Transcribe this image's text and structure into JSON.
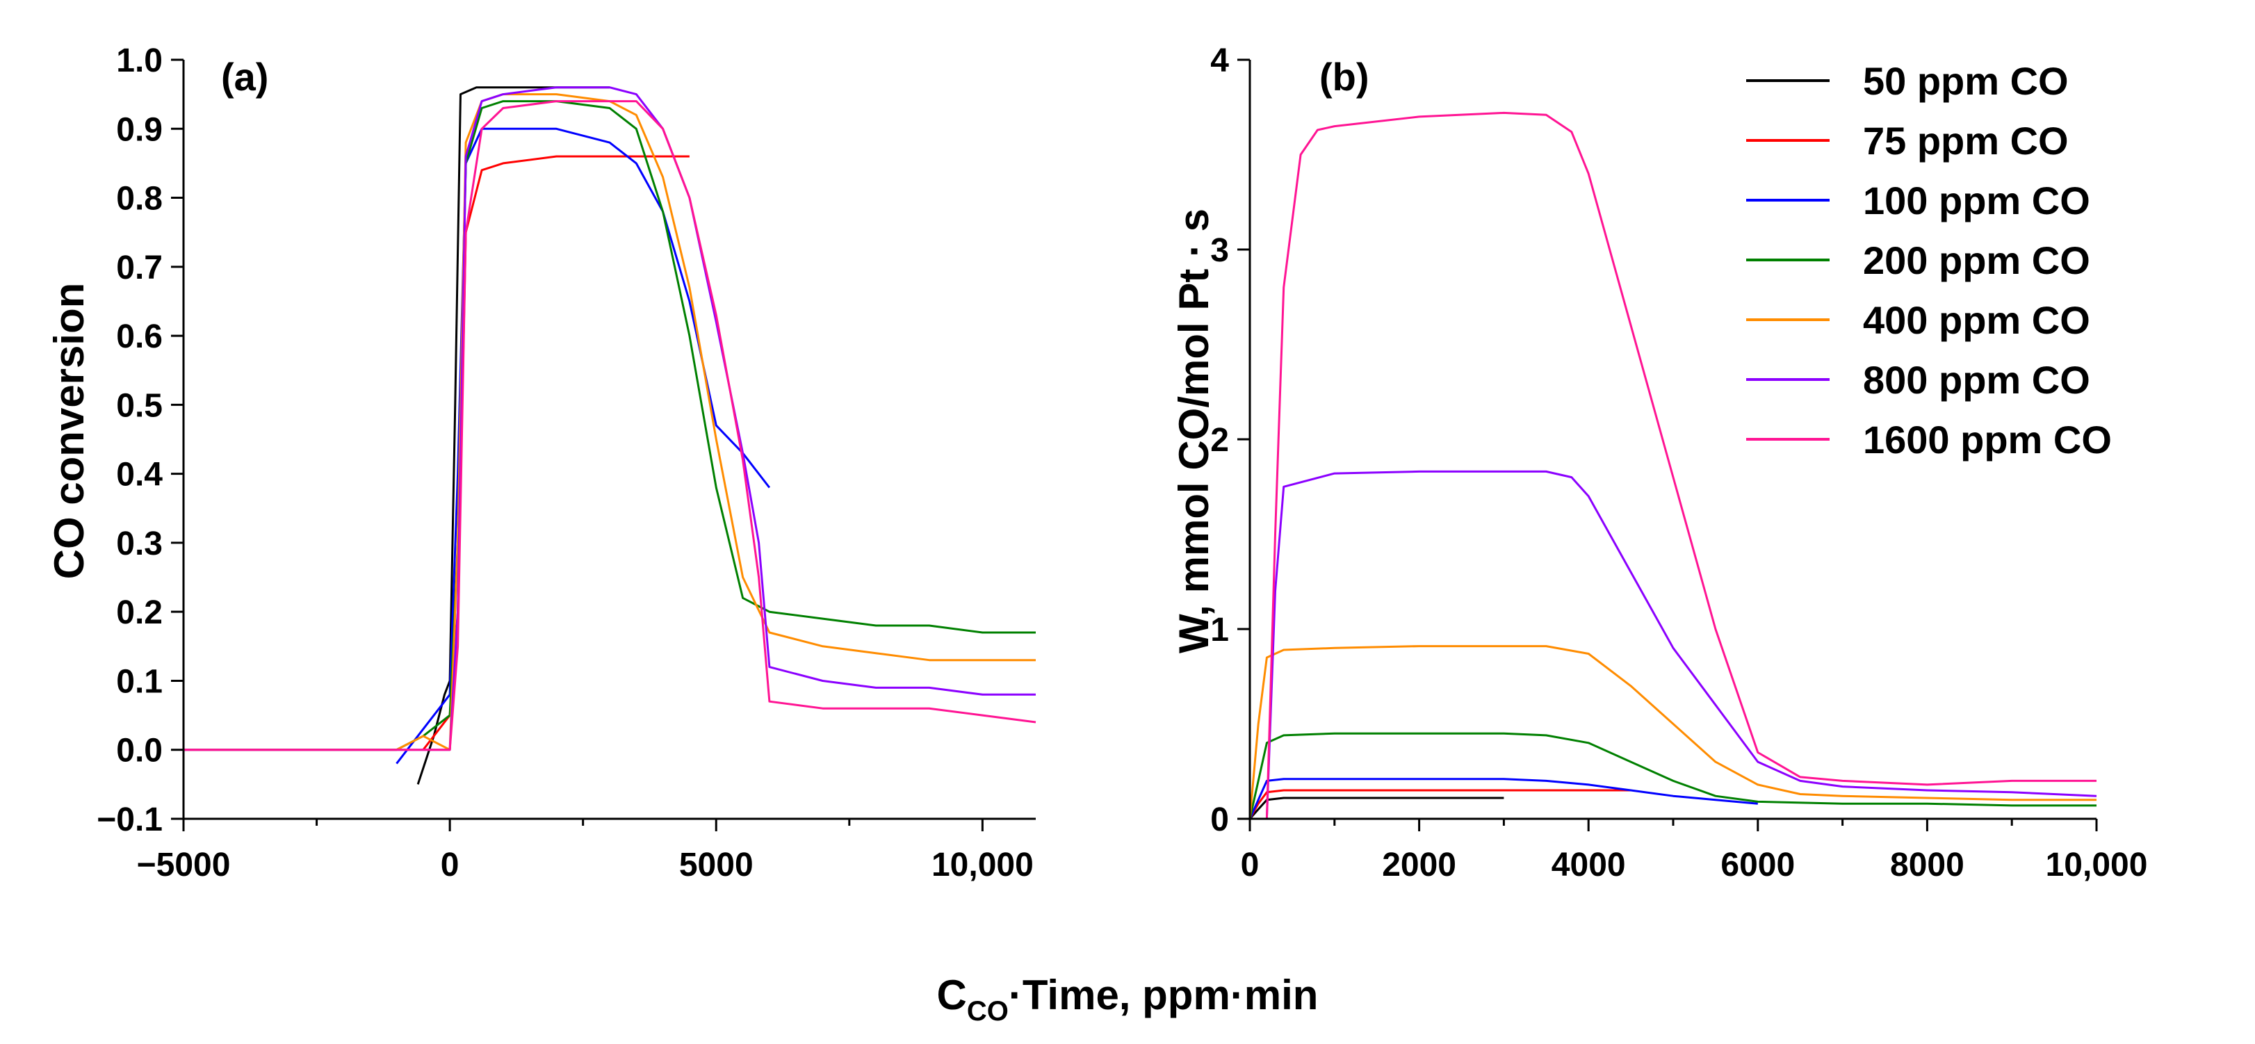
{
  "figure": {
    "shared_xlabel_main": "C",
    "shared_xlabel_sub": "CO",
    "shared_xlabel_rest": "·Time, ppm·min"
  },
  "legend": [
    {
      "label": "50 ppm CO",
      "color": "#000000"
    },
    {
      "label": "75 ppm CO",
      "color": "#ff0000"
    },
    {
      "label": "100 ppm CO",
      "color": "#0000ff"
    },
    {
      "label": "200 ppm CO",
      "color": "#008000"
    },
    {
      "label": "400 ppm CO",
      "color": "#ff8c00"
    },
    {
      "label": "800 ppm CO",
      "color": "#8b00ff"
    },
    {
      "label": "1600 ppm CO",
      "color": "#ff1493"
    }
  ],
  "chart_data": [
    {
      "type": "line",
      "panel": "(a)",
      "title": "",
      "xlabel": "C_CO·Time, ppm·min",
      "ylabel": "CO conversion",
      "xlim": [
        -5000,
        11000
      ],
      "ylim": [
        -0.1,
        1.0
      ],
      "xticks": [
        -5000,
        0,
        5000,
        10000
      ],
      "xtick_labels": [
        "−5000",
        "0",
        "5000",
        "10,000"
      ],
      "yticks": [
        -0.1,
        0.0,
        0.1,
        0.2,
        0.3,
        0.4,
        0.5,
        0.6,
        0.7,
        0.8,
        0.9,
        1.0
      ],
      "ytick_labels": [
        "−0.1",
        "0.0",
        "0.1",
        "0.2",
        "0.3",
        "0.4",
        "0.5",
        "0.6",
        "0.7",
        "0.8",
        "0.9",
        "1.0"
      ],
      "grid": false,
      "series": [
        {
          "name": "50 ppm CO",
          "x": [
            -600,
            -300,
            -100,
            0,
            100,
            200,
            500,
            1000,
            2000,
            3000
          ],
          "y": [
            -0.05,
            0.02,
            0.08,
            0.1,
            0.5,
            0.95,
            0.96,
            0.96,
            0.96,
            0.96
          ]
        },
        {
          "name": "75 ppm CO",
          "x": [
            -500,
            -200,
            0,
            150,
            300,
            600,
            1000,
            2000,
            3000,
            4000,
            4500
          ],
          "y": [
            0.0,
            0.03,
            0.05,
            0.2,
            0.75,
            0.84,
            0.85,
            0.86,
            0.86,
            0.86,
            0.86
          ]
        },
        {
          "name": "100 ppm CO",
          "x": [
            -1000,
            -500,
            -200,
            0,
            150,
            300,
            600,
            1000,
            2000,
            3000,
            3500,
            4000,
            4500,
            5000,
            5500,
            6000
          ],
          "y": [
            -0.02,
            0.03,
            0.06,
            0.08,
            0.4,
            0.85,
            0.9,
            0.9,
            0.9,
            0.88,
            0.85,
            0.78,
            0.65,
            0.47,
            0.43,
            0.38
          ]
        },
        {
          "name": "200 ppm CO",
          "x": [
            -5000,
            -3000,
            -2000,
            -1000,
            -500,
            0,
            150,
            300,
            600,
            1000,
            2000,
            3000,
            3500,
            4000,
            4500,
            5000,
            5500,
            6000,
            7000,
            8000,
            9000,
            10000,
            11000
          ],
          "y": [
            0.0,
            0.0,
            0.0,
            0.0,
            0.02,
            0.05,
            0.3,
            0.85,
            0.93,
            0.94,
            0.94,
            0.93,
            0.9,
            0.78,
            0.6,
            0.38,
            0.22,
            0.2,
            0.19,
            0.18,
            0.18,
            0.17,
            0.17
          ]
        },
        {
          "name": "400 ppm CO",
          "x": [
            -5000,
            -3000,
            -2000,
            -1000,
            -500,
            0,
            150,
            300,
            600,
            1000,
            2000,
            3000,
            3500,
            4000,
            4500,
            5000,
            5500,
            6000,
            7000,
            8000,
            9000,
            10000,
            11000
          ],
          "y": [
            0.0,
            0.0,
            0.0,
            0.0,
            0.02,
            0.0,
            0.3,
            0.88,
            0.94,
            0.95,
            0.95,
            0.94,
            0.92,
            0.83,
            0.67,
            0.45,
            0.25,
            0.17,
            0.15,
            0.14,
            0.13,
            0.13,
            0.13
          ]
        },
        {
          "name": "800 ppm CO",
          "x": [
            -5000,
            -3000,
            -2000,
            -1000,
            -500,
            0,
            150,
            300,
            600,
            1000,
            2000,
            3000,
            3500,
            4000,
            4500,
            5000,
            5500,
            5800,
            6000,
            7000,
            8000,
            9000,
            10000,
            11000
          ],
          "y": [
            0.0,
            0.0,
            0.0,
            0.0,
            0.0,
            0.0,
            0.2,
            0.86,
            0.94,
            0.95,
            0.96,
            0.96,
            0.95,
            0.9,
            0.8,
            0.62,
            0.43,
            0.3,
            0.12,
            0.1,
            0.09,
            0.09,
            0.08,
            0.08
          ]
        },
        {
          "name": "1600 ppm CO",
          "x": [
            -5000,
            -3000,
            -2000,
            -1000,
            -500,
            0,
            150,
            300,
            600,
            1000,
            2000,
            3000,
            3500,
            4000,
            4500,
            5000,
            5500,
            5800,
            6000,
            7000,
            8000,
            9000,
            10000,
            11000
          ],
          "y": [
            0.0,
            0.0,
            0.0,
            0.0,
            0.0,
            0.0,
            0.15,
            0.75,
            0.9,
            0.93,
            0.94,
            0.94,
            0.94,
            0.9,
            0.8,
            0.63,
            0.42,
            0.25,
            0.07,
            0.06,
            0.06,
            0.06,
            0.05,
            0.04
          ]
        }
      ]
    },
    {
      "type": "line",
      "panel": "(b)",
      "title": "",
      "xlabel": "C_CO·Time, ppm·min",
      "ylabel": "W, mmol CO/mol Pt · s",
      "xlim": [
        0,
        10000
      ],
      "ylim": [
        0,
        4
      ],
      "xticks": [
        0,
        2000,
        4000,
        6000,
        8000,
        10000
      ],
      "xtick_labels": [
        "0",
        "2000",
        "4000",
        "6000",
        "8000",
        "10,000"
      ],
      "yticks": [
        0,
        1,
        2,
        3,
        4
      ],
      "ytick_labels": [
        "0",
        "1",
        "2",
        "3",
        "4"
      ],
      "grid": false,
      "legend_position": "top-right",
      "series": [
        {
          "name": "50 ppm CO",
          "x": [
            0,
            100,
            200,
            400,
            1000,
            2000,
            3000
          ],
          "y": [
            0.0,
            0.05,
            0.1,
            0.11,
            0.11,
            0.11,
            0.11
          ]
        },
        {
          "name": "75 ppm CO",
          "x": [
            0,
            100,
            200,
            400,
            1000,
            2000,
            3000,
            4000,
            4500
          ],
          "y": [
            0.0,
            0.08,
            0.14,
            0.15,
            0.15,
            0.15,
            0.15,
            0.15,
            0.15
          ]
        },
        {
          "name": "100 ppm CO",
          "x": [
            0,
            100,
            200,
            400,
            1000,
            2000,
            3000,
            3500,
            4000,
            4500,
            5000,
            5500,
            6000
          ],
          "y": [
            0.0,
            0.1,
            0.2,
            0.21,
            0.21,
            0.21,
            0.21,
            0.2,
            0.18,
            0.15,
            0.12,
            0.1,
            0.08
          ]
        },
        {
          "name": "200 ppm CO",
          "x": [
            0,
            100,
            200,
            400,
            1000,
            2000,
            3000,
            3500,
            4000,
            4500,
            5000,
            5500,
            6000,
            7000,
            8000,
            9000,
            10000
          ],
          "y": [
            0.0,
            0.2,
            0.4,
            0.44,
            0.45,
            0.45,
            0.45,
            0.44,
            0.4,
            0.3,
            0.2,
            0.12,
            0.09,
            0.08,
            0.08,
            0.07,
            0.07
          ]
        },
        {
          "name": "400 ppm CO",
          "x": [
            0,
            100,
            200,
            400,
            1000,
            2000,
            3000,
            3500,
            4000,
            4500,
            5000,
            5500,
            6000,
            6500,
            7000,
            8000,
            9000,
            10000
          ],
          "y": [
            0.0,
            0.5,
            0.85,
            0.89,
            0.9,
            0.91,
            0.91,
            0.91,
            0.87,
            0.7,
            0.5,
            0.3,
            0.18,
            0.13,
            0.12,
            0.11,
            0.1,
            0.1
          ]
        },
        {
          "name": "800 ppm CO",
          "x": [
            0,
            100,
            200,
            300,
            400,
            1000,
            2000,
            3000,
            3500,
            3800,
            4000,
            4500,
            5000,
            5500,
            6000,
            6500,
            7000,
            8000,
            9000,
            10000
          ],
          "y": [
            0.0,
            0.0,
            0.0,
            1.2,
            1.75,
            1.82,
            1.83,
            1.83,
            1.83,
            1.8,
            1.7,
            1.3,
            0.9,
            0.6,
            0.3,
            0.2,
            0.17,
            0.15,
            0.14,
            0.12
          ]
        },
        {
          "name": "1600 ppm CO",
          "x": [
            0,
            100,
            200,
            300,
            400,
            600,
            800,
            1000,
            2000,
            3000,
            3500,
            3800,
            4000,
            4500,
            5000,
            5500,
            6000,
            6500,
            7000,
            8000,
            9000,
            10000
          ],
          "y": [
            0.0,
            0.0,
            0.0,
            1.5,
            2.8,
            3.5,
            3.63,
            3.65,
            3.7,
            3.72,
            3.71,
            3.62,
            3.4,
            2.6,
            1.8,
            1.0,
            0.35,
            0.22,
            0.2,
            0.18,
            0.2,
            0.2
          ]
        }
      ]
    }
  ]
}
